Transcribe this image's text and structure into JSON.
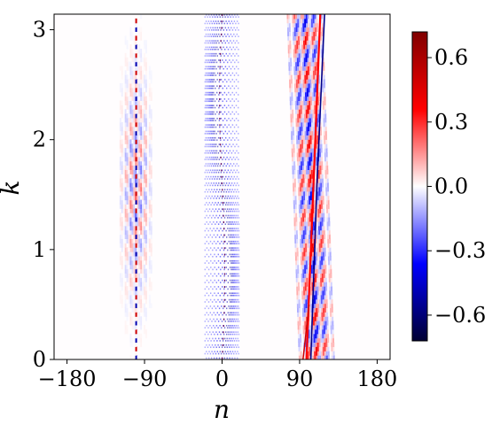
{
  "chart_data": {
    "type": "heatmap",
    "title": "",
    "xlabel": "n",
    "ylabel": "k",
    "xlim": [
      -195,
      195
    ],
    "ylim": [
      0,
      3.1416
    ],
    "x_ticks": [
      -180,
      -90,
      0,
      90,
      180
    ],
    "x_tick_labels": [
      "−180",
      "−90",
      "0",
      "90",
      "180"
    ],
    "y_ticks": [
      0,
      1,
      2,
      3
    ],
    "y_tick_labels": [
      "0",
      "1",
      "2",
      "3"
    ],
    "colorbar": {
      "colormap": "seismic",
      "range": [
        -0.72,
        0.72
      ],
      "ticks": [
        0.6,
        0.3,
        0.0,
        -0.3,
        -0.6
      ],
      "tick_labels": [
        "0.6",
        "0.3",
        "0.0",
        "−0.3",
        "−0.6"
      ],
      "colors": [
        "#000033",
        "#0000ff",
        "#ffffff",
        "#ff0000",
        "#800000"
      ]
    },
    "features": [
      {
        "name": "left-band",
        "n_center": -100,
        "n_halfwidth": 18,
        "k_range": [
          0,
          3.1416
        ],
        "amplitude": 0.25,
        "pattern": "weak oscillating fringes, strongest near k=1.57"
      },
      {
        "name": "center-band",
        "n_center": 0,
        "n_halfwidth": 20,
        "k_range": [
          0,
          3.1416
        ],
        "amplitude": 0.5,
        "pattern": "dense purple fringes, sinusoidal drift with k"
      },
      {
        "name": "right-band",
        "n_center": 110,
        "n_halfwidth": 20,
        "k_range": [
          0,
          3.1416
        ],
        "amplitude": 0.7,
        "pattern": "strong red and blue diagonal fronts from n≈98 at k=0 to n≈120 at k=3.14"
      }
    ]
  }
}
